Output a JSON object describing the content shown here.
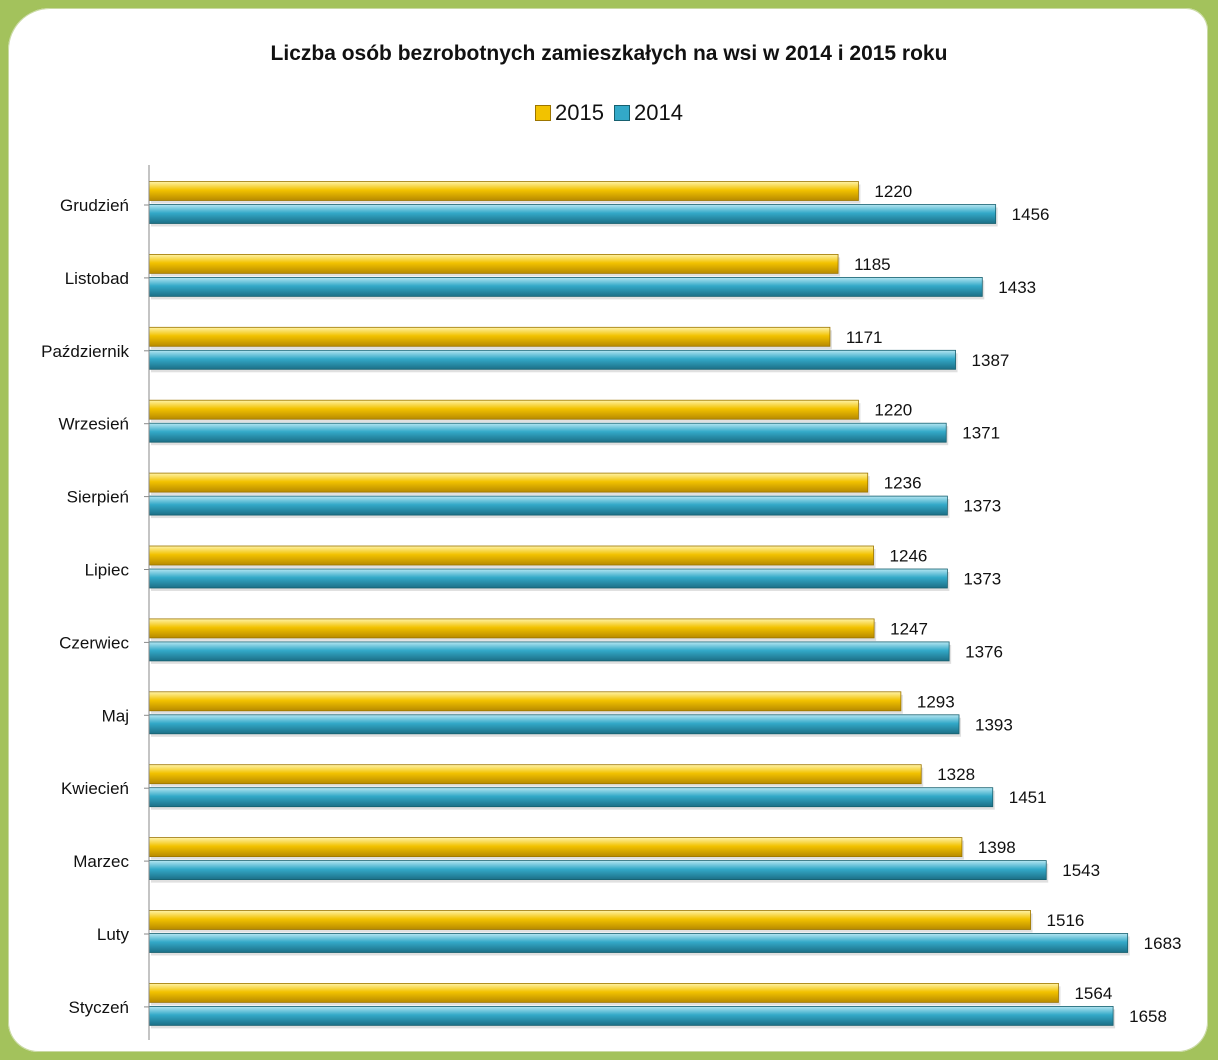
{
  "colors": {
    "frame": "#a3c25c",
    "series_2015": "#f2c200",
    "series_2014": "#33a9c8"
  },
  "chart_data": {
    "type": "bar",
    "orientation": "horizontal",
    "title": "Liczba osób bezrobotnych zamieszkałych na wsi w 2014 i 2015 roku",
    "legend_position": "top",
    "grid": false,
    "categories": [
      "Grudzień",
      "Listobad",
      "Październik",
      "Wrzesień",
      "Sierpień",
      "Lipiec",
      "Czerwiec",
      "Maj",
      "Kwiecień",
      "Marzec",
      "Luty",
      "Styczeń"
    ],
    "series": [
      {
        "name": "2015",
        "color": "#f2c200",
        "values": [
          1220,
          1185,
          1171,
          1220,
          1236,
          1246,
          1247,
          1293,
          1328,
          1398,
          1516,
          1564
        ]
      },
      {
        "name": "2014",
        "color": "#33a9c8",
        "values": [
          1456,
          1433,
          1387,
          1371,
          1373,
          1373,
          1376,
          1393,
          1451,
          1543,
          1683,
          1658
        ]
      }
    ],
    "xlim": [
      0,
      1683
    ]
  }
}
